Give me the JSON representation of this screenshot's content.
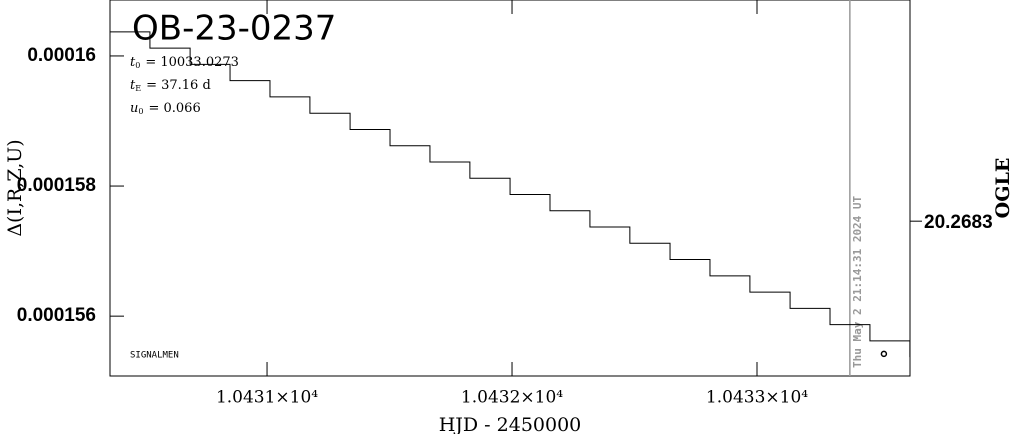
{
  "chart_data": {
    "type": "line",
    "title": "OB-23-0237",
    "parameters": [
      {
        "symbol": "t",
        "subscript": "0",
        "text": "= 10033.0273"
      },
      {
        "symbol": "t",
        "subscript": "E",
        "text": "= 37.16 d"
      },
      {
        "symbol": "u",
        "subscript": "0",
        "text": "= 0.066"
      }
    ],
    "annotation": "SIGNALMEN",
    "xlabel": "HJD - 2450000",
    "ylabel": "Δ(I,R,Z,U)",
    "y2label": "OGLE",
    "xlim": [
      10430.359,
      10433.6245
    ],
    "ylim": [
      0.00015508,
      0.00016086
    ],
    "y2lim": [
      20.269,
      20.2673
    ],
    "xticks": [
      {
        "value": 10431,
        "label": "1.0431×10⁴"
      },
      {
        "value": 10432,
        "label": "1.0432×10⁴"
      },
      {
        "value": 10433,
        "label": "1.0433×10⁴"
      }
    ],
    "yticks": [
      0.00016,
      0.000158,
      0.000156
    ],
    "y2ticks": [
      20.2683
    ],
    "now_line": {
      "x": 10433.379,
      "label": "Thu May  2 21:14:31 2024 UT",
      "color": "#999999"
    },
    "x": [
      10430.359,
      10430.522,
      10430.686,
      10430.849,
      10431.012,
      10431.175,
      10431.339,
      10431.502,
      10431.665,
      10431.828,
      10431.992,
      10432.155,
      10432.318,
      10432.481,
      10432.645,
      10432.808,
      10432.971,
      10433.135,
      10433.298,
      10433.461,
      10433.624
    ],
    "series": [
      {
        "name": "Δ(I,R,Z,U)",
        "color": "#000000",
        "step": true,
        "values": [
          0.00016037,
          0.00016012,
          0.00015987,
          0.00015962,
          0.00015937,
          0.00015912,
          0.00015887,
          0.00015862,
          0.00015837,
          0.00015812,
          0.00015787,
          0.00015762,
          0.00015737,
          0.00015712,
          0.00015687,
          0.00015662,
          0.00015637,
          0.00015612,
          0.00015587,
          0.00015562,
          0.00015537
        ]
      }
    ],
    "points": {
      "name": "OGLE",
      "axis": "y2",
      "color": "#000000",
      "x": [
        10433.518
      ],
      "values": [
        20.2689
      ]
    }
  }
}
